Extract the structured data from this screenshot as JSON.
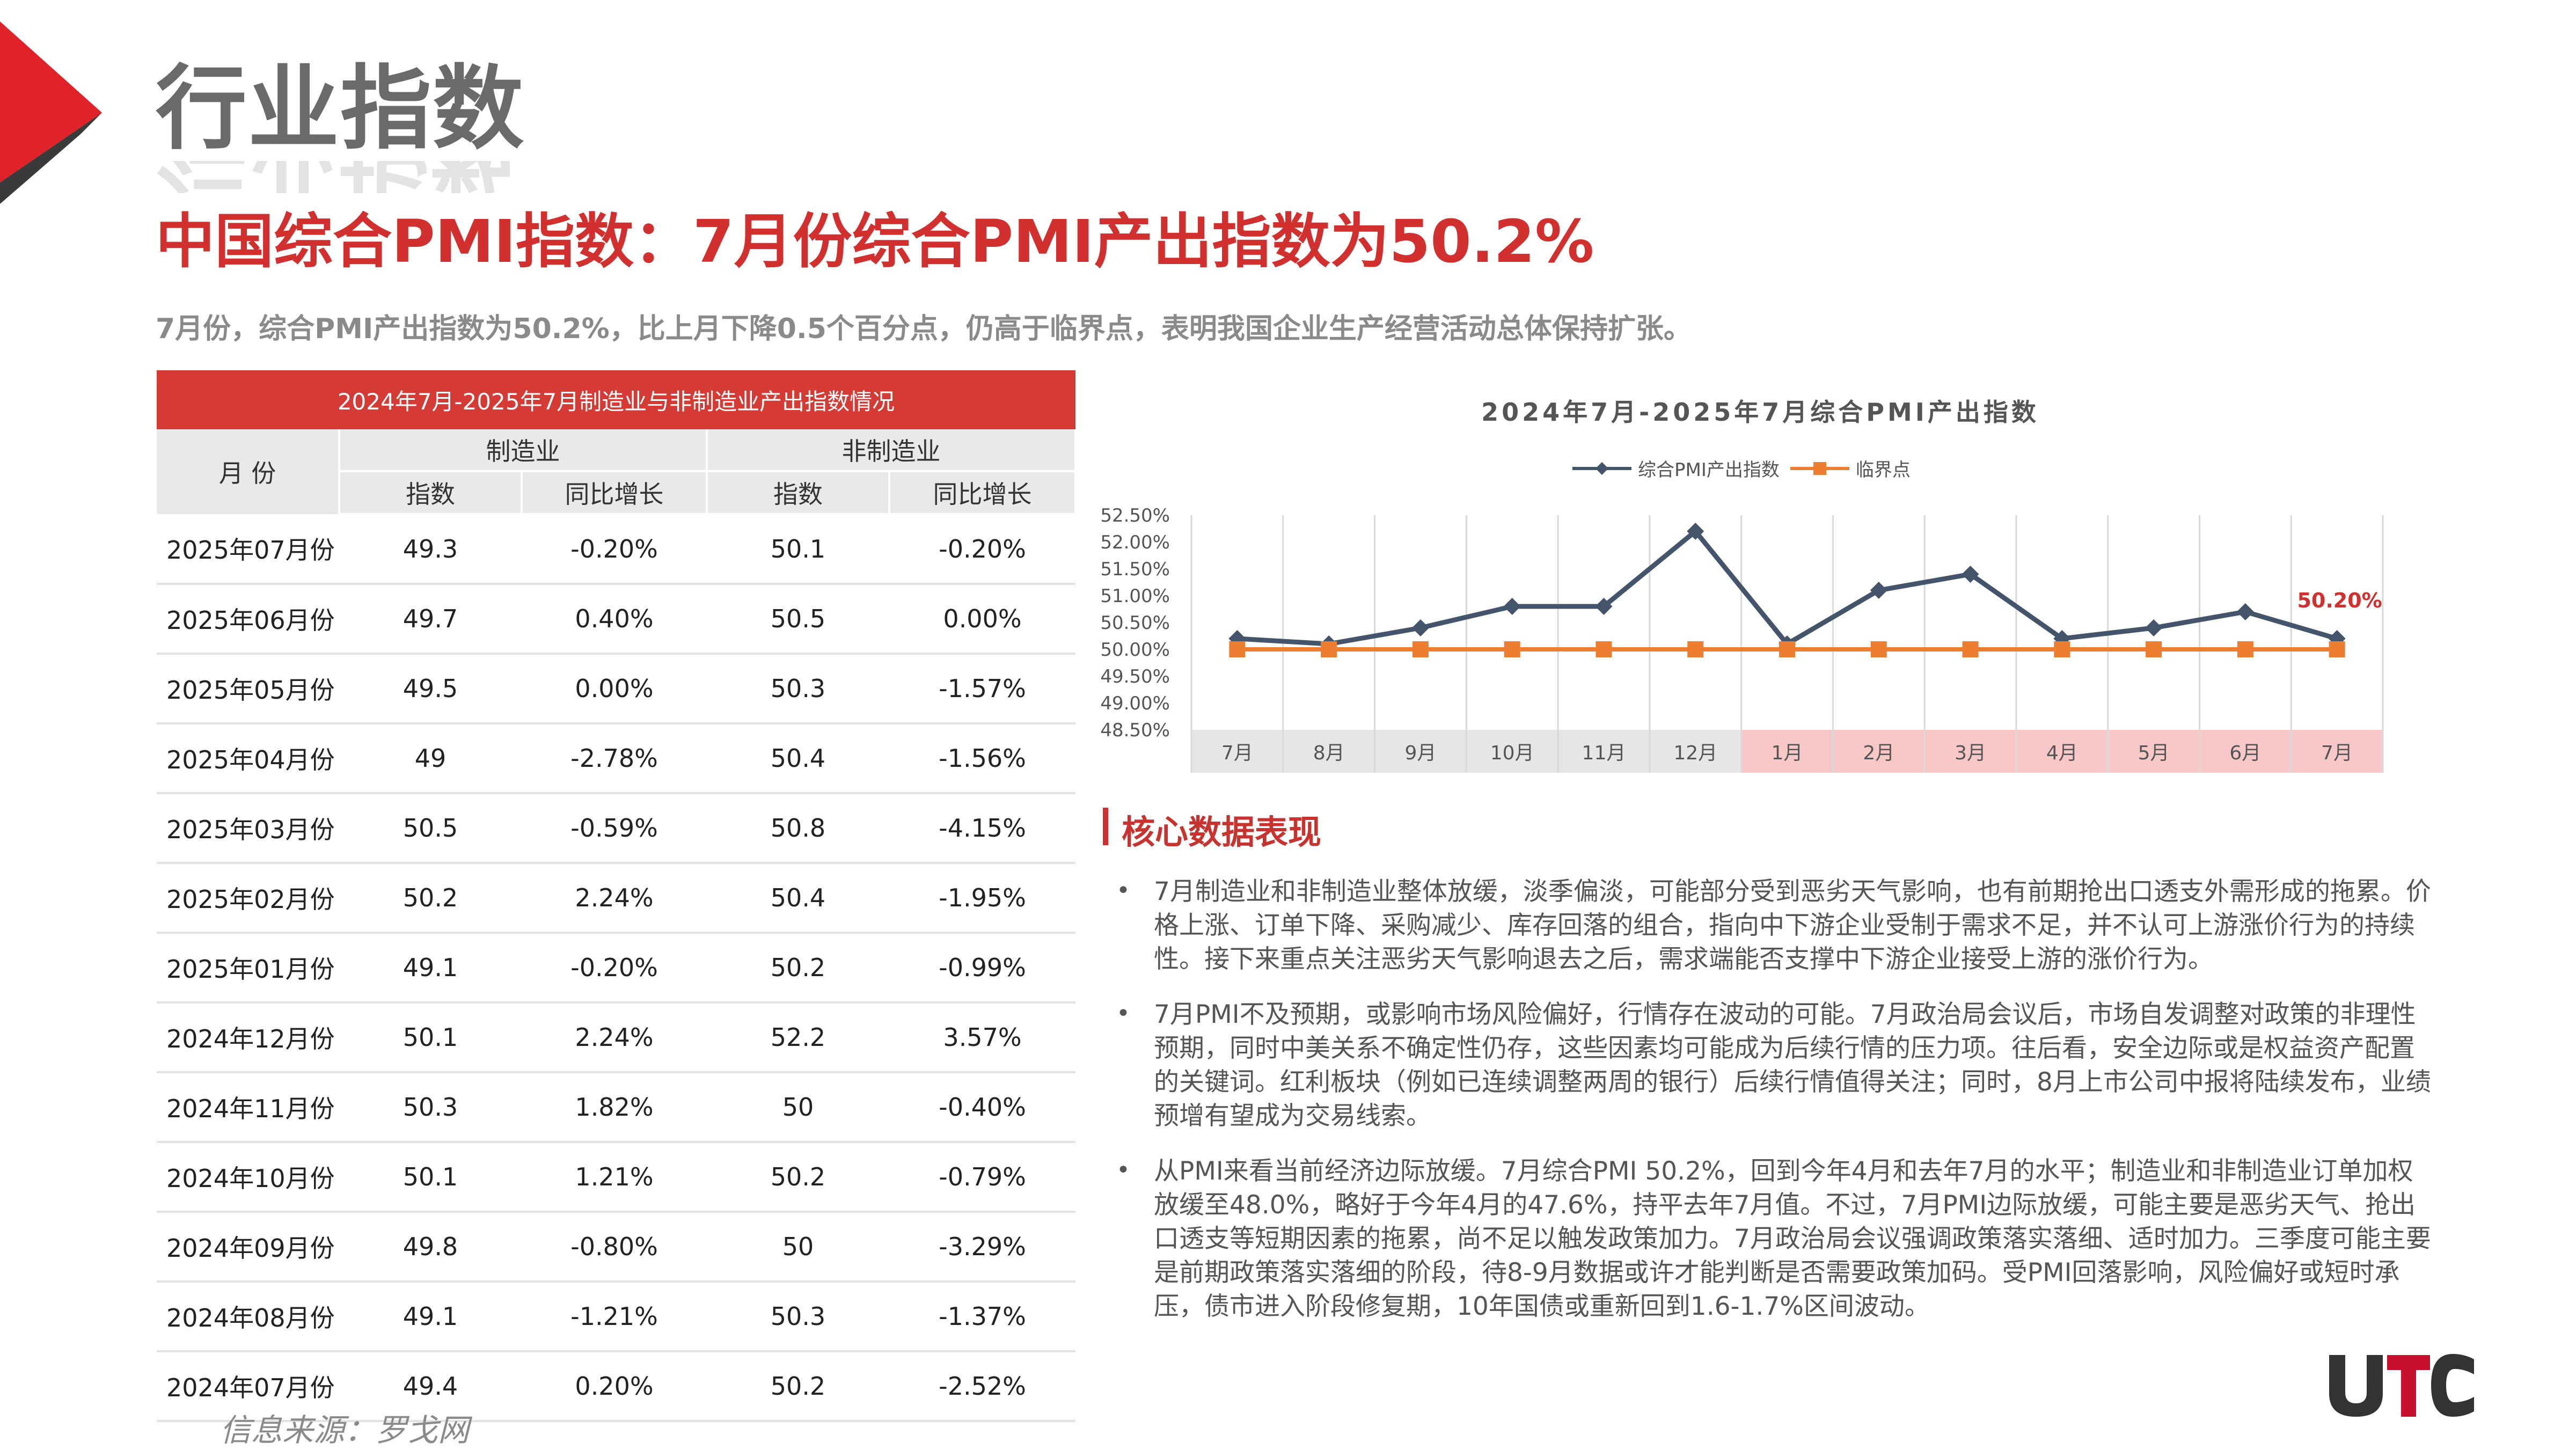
{
  "header": {
    "section_title": "行业指数",
    "headline": "中国综合PMI指数：7月份综合PMI产出指数为50.2%",
    "summary": "7月份，综合PMI产出指数为50.2%，比上月下降0.5个百分点，仍高于临界点，表明我国企业生产经营活动总体保持扩张。"
  },
  "table": {
    "title": "2024年7月-2025年7月制造业与非制造业产出指数情况",
    "col_month": "月  份",
    "group_mfg": "制造业",
    "group_nonmfg": "非制造业",
    "col_index": "指数",
    "col_yoy": "同比增长",
    "rows": [
      {
        "month": "2025年07月份",
        "mfg": "49.3",
        "mfg_yoy": "-0.20%",
        "non": "50.1",
        "non_yoy": "-0.20%"
      },
      {
        "month": "2025年06月份",
        "mfg": "49.7",
        "mfg_yoy": "0.40%",
        "non": "50.5",
        "non_yoy": "0.00%"
      },
      {
        "month": "2025年05月份",
        "mfg": "49.5",
        "mfg_yoy": "0.00%",
        "non": "50.3",
        "non_yoy": "-1.57%"
      },
      {
        "month": "2025年04月份",
        "mfg": "49",
        "mfg_yoy": "-2.78%",
        "non": "50.4",
        "non_yoy": "-1.56%"
      },
      {
        "month": "2025年03月份",
        "mfg": "50.5",
        "mfg_yoy": "-0.59%",
        "non": "50.8",
        "non_yoy": "-4.15%"
      },
      {
        "month": "2025年02月份",
        "mfg": "50.2",
        "mfg_yoy": "2.24%",
        "non": "50.4",
        "non_yoy": "-1.95%"
      },
      {
        "month": "2025年01月份",
        "mfg": "49.1",
        "mfg_yoy": "-0.20%",
        "non": "50.2",
        "non_yoy": "-0.99%"
      },
      {
        "month": "2024年12月份",
        "mfg": "50.1",
        "mfg_yoy": "2.24%",
        "non": "52.2",
        "non_yoy": "3.57%"
      },
      {
        "month": "2024年11月份",
        "mfg": "50.3",
        "mfg_yoy": "1.82%",
        "non": "50",
        "non_yoy": "-0.40%"
      },
      {
        "month": "2024年10月份",
        "mfg": "50.1",
        "mfg_yoy": "1.21%",
        "non": "50.2",
        "non_yoy": "-0.79%"
      },
      {
        "month": "2024年09月份",
        "mfg": "49.8",
        "mfg_yoy": "-0.80%",
        "non": "50",
        "non_yoy": "-3.29%"
      },
      {
        "month": "2024年08月份",
        "mfg": "49.1",
        "mfg_yoy": "-1.21%",
        "non": "50.3",
        "non_yoy": "-1.37%"
      },
      {
        "month": "2024年07月份",
        "mfg": "49.4",
        "mfg_yoy": "0.20%",
        "non": "50.2",
        "non_yoy": "-2.52%"
      }
    ]
  },
  "source": "信息来源：罗戈网",
  "chart_data": {
    "type": "line",
    "title": "2024年7月-2025年7月综合PMI产出指数",
    "categories": [
      "7月",
      "8月",
      "9月",
      "10月",
      "11月",
      "12月",
      "1月",
      "2月",
      "3月",
      "4月",
      "5月",
      "6月",
      "7月"
    ],
    "series": [
      {
        "name": "综合PMI产出指数",
        "values": [
          50.2,
          50.1,
          50.4,
          50.8,
          50.8,
          52.2,
          50.1,
          51.1,
          51.4,
          50.2,
          50.4,
          50.7,
          50.2
        ],
        "color": "#44546a"
      },
      {
        "name": "临界点",
        "values": [
          50,
          50,
          50,
          50,
          50,
          50,
          50,
          50,
          50,
          50,
          50,
          50,
          50
        ],
        "color": "#ed7d31"
      }
    ],
    "ylim": [
      48.5,
      52.5
    ],
    "yticks": [
      "48.50%",
      "49.00%",
      "49.50%",
      "50.00%",
      "50.50%",
      "51.00%",
      "51.50%",
      "52.00%",
      "52.50%"
    ],
    "annotation": "50.20%",
    "highlight_color": "#f8c8c8",
    "grid": "vertical",
    "legend": "top-center"
  },
  "core": {
    "title": "核心数据表现",
    "bullets": [
      "7月制造业和非制造业整体放缓，淡季偏淡，可能部分受到恶劣天气影响，也有前期抢出口透支外需形成的拖累。价格上涨、订单下降、采购减少、库存回落的组合，指向中下游企业受制于需求不足，并不认可上游涨价行为的持续性。接下来重点关注恶劣天气影响退去之后，需求端能否支撑中下游企业接受上游的涨价行为。",
      "7月PMI不及预期，或影响市场风险偏好，行情存在波动的可能。7月政治局会议后，市场自发调整对政策的非理性预期，同时中美关系不确定性仍存，这些因素均可能成为后续行情的压力项。往后看，安全边际或是权益资产配置的关键词。红利板块（例如已连续调整两周的银行）后续行情值得关注；同时，8月上市公司中报将陆续发布，业绩预增有望成为交易线索。",
      "从PMI来看当前经济边际放缓。7月综合PMI 50.2%，回到今年4月和去年7月的水平；制造业和非制造业订单加权放缓至48.0%，略好于今年4月的47.6%，持平去年7月值。不过，7月PMI边际放缓，可能主要是恶劣天气、抢出口透支等短期因素的拖累，尚不足以触发政策加力。7月政治局会议强调政策落实落细、适时加力。三季度可能主要是前期政策落实落细的阶段，待8-9月数据或许才能判断是否需要政策加码。受PMI回落影响，风险偏好或短时承压，债市进入阶段修复期，10年国债或重新回到1.6-1.7%区间波动。"
    ]
  },
  "brand": {
    "logo_text": "UTC",
    "accent": "#d22f2f",
    "logo_color": "#c8102e"
  }
}
